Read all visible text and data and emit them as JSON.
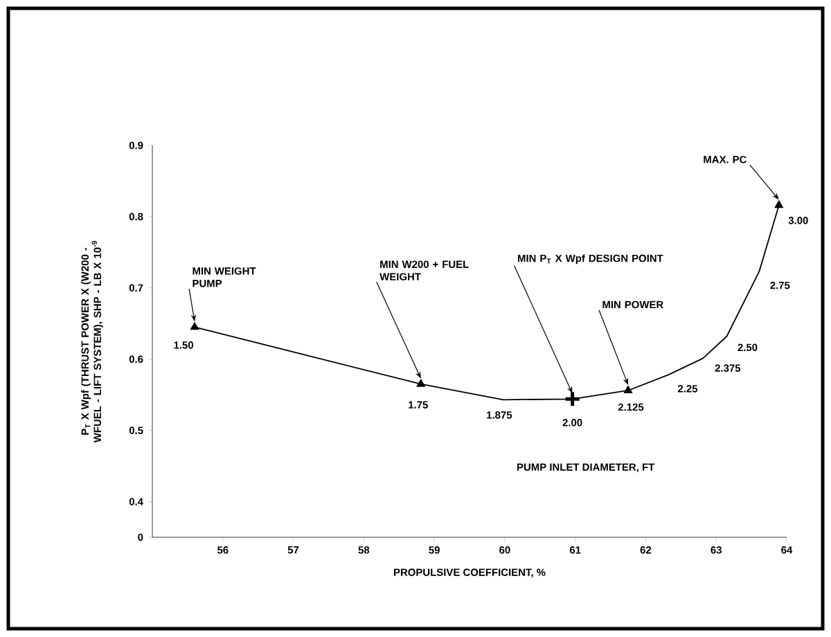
{
  "chart_data": {
    "type": "line",
    "xlabel": "PROPULSIVE COEFFICIENT, %",
    "ylabel": "P$_{T}$ X Wpf (THRUST POWER X (W200 - WFUEL - LIFT SYSTEM), SHP - LB X 10$^{-9}$",
    "xlim": [
      55,
      64
    ],
    "ylim": [
      0.35,
      0.9
    ],
    "xticks": [
      56,
      57,
      58,
      59,
      60,
      61,
      62,
      63,
      64
    ],
    "yticks": [
      {
        "value": 0.35,
        "label": "0"
      },
      0.4,
      0.5,
      0.6,
      0.7,
      0.8,
      0.9
    ],
    "grid": false,
    "line_style": "solid",
    "series": [
      {
        "color": "#000000",
        "marker": "none",
        "x": [
          55.6,
          58.81,
          59.98,
          60.96,
          61.75,
          62.32,
          62.81,
          63.15,
          63.61,
          63.89
        ],
        "values": [
          0.645,
          0.565,
          0.543,
          0.544,
          0.556,
          0.578,
          0.601,
          0.632,
          0.723,
          0.816
        ]
      },
      {
        "type": "scatter",
        "color": "#000000",
        "marker": "triangle",
        "x": [
          55.6,
          58.81,
          61.75,
          63.89
        ],
        "values": [
          0.645,
          0.565,
          0.556,
          0.816
        ]
      },
      {
        "type": "scatter",
        "color": "#000000",
        "marker": "cross",
        "x": [
          60.96
        ],
        "values": [
          0.544
        ]
      }
    ],
    "annotations": [
      {
        "text": "1.50",
        "x": 55.6,
        "y": 0.645
      },
      {
        "text": "1.75",
        "x": 58.81,
        "y": 0.565
      },
      {
        "text": "1.875",
        "x": 59.98,
        "y": 0.543
      },
      {
        "text": "2.00",
        "x": 60.96,
        "y": 0.544
      },
      {
        "text": "2.125",
        "x": 61.75,
        "y": 0.556
      },
      {
        "text": "2.25",
        "x": 62.32,
        "y": 0.578
      },
      {
        "text": "2.375",
        "x": 62.81,
        "y": 0.601
      },
      {
        "text": "2.50",
        "x": 63.15,
        "y": 0.632
      },
      {
        "text": "2.75",
        "x": 63.61,
        "y": 0.723
      },
      {
        "text": "3.00",
        "x": 63.89,
        "y": 0.816
      },
      {
        "text": "MIN WEIGHT PUMP",
        "x": 55.6,
        "y": 0.645
      },
      {
        "text": "MIN W200 + FUEL WEIGHT",
        "x": 58.81,
        "y": 0.565
      },
      {
        "text": "MIN P$_{T}$ X Wpf DESIGN POINT",
        "x": 60.96,
        "y": 0.544
      },
      {
        "text": "MIN POWER",
        "x": 61.75,
        "y": 0.556
      },
      {
        "text": "MAX. PC",
        "x": 63.89,
        "y": 0.816
      },
      "PUMP INLET DIAMETER, FT"
    ]
  }
}
